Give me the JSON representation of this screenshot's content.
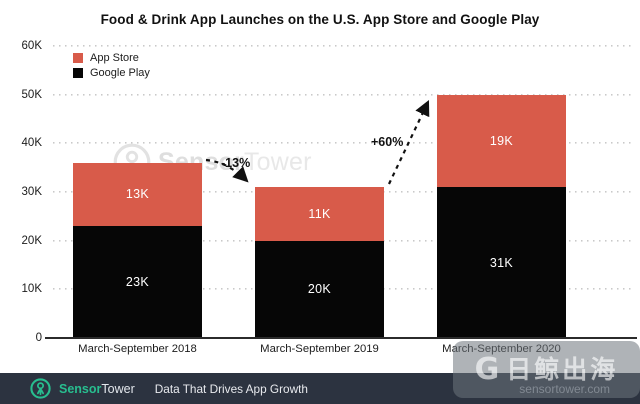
{
  "title": "Food & Drink App Launches on the U.S. App Store and Google Play",
  "colors": {
    "app_store": "#D85B4A",
    "google_play": "#060606",
    "grid": "#C9C9C9",
    "footer_bg": "#2C3340",
    "brand_teal": "#28BE8F",
    "watermark_gray": "#E2E2E2"
  },
  "legend": [
    {
      "label": "App Store",
      "color": "#D85B4A"
    },
    {
      "label": "Google Play",
      "color": "#060606"
    }
  ],
  "chart_data": {
    "type": "bar",
    "stacked": true,
    "title": "Food & Drink App Launches on the U.S. App Store and Google Play",
    "categories": [
      "March-September 2018",
      "March-September 2019",
      "March-September 2020"
    ],
    "series": [
      {
        "name": "Google Play",
        "color": "#060606",
        "values": [
          23000,
          20000,
          31000
        ],
        "labels": [
          "23K",
          "20K",
          "31K"
        ]
      },
      {
        "name": "App Store",
        "color": "#D85B4A",
        "values": [
          13000,
          11000,
          19000
        ],
        "labels": [
          "13K",
          "11K",
          "19K"
        ]
      }
    ],
    "totals": [
      36000,
      31000,
      50000
    ],
    "xlabel": "",
    "ylabel": "",
    "ylim": [
      0,
      60000
    ],
    "yticks": [
      {
        "value": 0,
        "label": "0"
      },
      {
        "value": 10000,
        "label": "10K"
      },
      {
        "value": 20000,
        "label": "20K"
      },
      {
        "value": 30000,
        "label": "30K"
      },
      {
        "value": 40000,
        "label": "40K"
      },
      {
        "value": 50000,
        "label": "50K"
      },
      {
        "value": 60000,
        "label": "60K"
      }
    ],
    "grid": "dotted-horizontal",
    "legend_position": "top-left",
    "annotations": [
      {
        "label": "-13%",
        "from": "March-September 2018",
        "to": "March-September 2019"
      },
      {
        "label": "+60%",
        "from": "March-September 2019",
        "to": "March-September 2020"
      }
    ]
  },
  "watermark": {
    "brand_bold": "Sensor",
    "brand_light": "Tower"
  },
  "footer": {
    "brand_bold": "Sensor",
    "brand_light": "Tower",
    "tagline": "Data That Drives App Growth",
    "site": "sensortower.com"
  },
  "overlay_watermark": {
    "icon": "G",
    "text": "日鲸出海"
  }
}
